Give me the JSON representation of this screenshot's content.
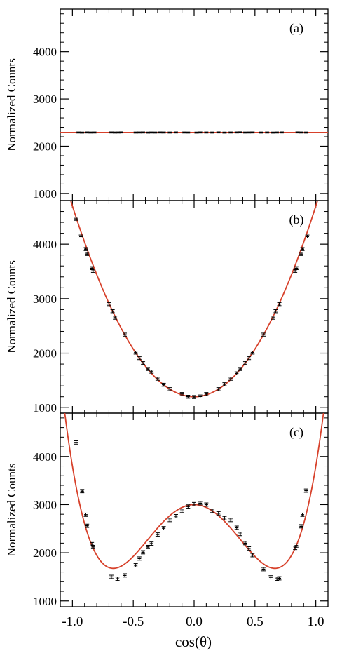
{
  "colors": {
    "fit": "#d7412b",
    "points": "#000000",
    "axis": "#000000",
    "background": "#ffffff"
  },
  "xlabel": "cos(θ)",
  "chart_data": [
    {
      "type": "scatter",
      "panel_label": "(a)",
      "ylabel": "Normalized Counts",
      "xlim": [
        -1.1,
        1.1
      ],
      "ylim": [
        850,
        4900
      ],
      "yticks": [
        1000,
        2000,
        3000,
        4000
      ],
      "xticks": [
        -1.0,
        -0.5,
        0.0,
        0.5,
        1.0
      ],
      "grid": false,
      "fit_color": "#d7412b",
      "fit_coefficients": [
        2290,
        0,
        0,
        0,
        0
      ],
      "fit_range": [
        -1.1,
        1.1
      ],
      "error": 12,
      "x": [
        -0.95,
        -0.92,
        -0.88,
        -0.85,
        -0.82,
        -0.68,
        -0.65,
        -0.62,
        -0.6,
        -0.48,
        -0.45,
        -0.42,
        -0.38,
        -0.35,
        -0.32,
        -0.28,
        -0.25,
        -0.2,
        -0.15,
        -0.08,
        -0.05,
        0.02,
        0.05,
        0.1,
        0.15,
        0.2,
        0.25,
        0.3,
        0.35,
        0.38,
        0.42,
        0.45,
        0.48,
        0.55,
        0.6,
        0.65,
        0.68,
        0.72,
        0.85,
        0.88,
        0.92
      ],
      "y": [
        2290,
        2288,
        2291,
        2289,
        2290,
        2291,
        2289,
        2290,
        2292,
        2289,
        2290,
        2291,
        2288,
        2290,
        2289,
        2291,
        2290,
        2289,
        2291,
        2290,
        2289,
        2288,
        2291,
        2290,
        2289,
        2292,
        2288,
        2290,
        2291,
        2293,
        2289,
        2290,
        2291,
        2289,
        2290,
        2288,
        2290,
        2291,
        2292,
        2290,
        2289
      ]
    },
    {
      "type": "scatter",
      "panel_label": "(b)",
      "ylabel": "Normalized Counts",
      "xlim": [
        -1.1,
        1.1
      ],
      "ylim": [
        900,
        4800
      ],
      "yticks": [
        1000,
        2000,
        3000,
        4000
      ],
      "xticks": [
        -1.0,
        -0.5,
        0.0,
        0.5,
        1.0
      ],
      "grid": false,
      "fit_color": "#d7412b",
      "fit_coefficients": [
        1200,
        0,
        3500,
        0,
        0
      ],
      "fit_range": [
        -1.1,
        1.1
      ],
      "error": 28,
      "x": [
        -0.97,
        -0.93,
        -0.89,
        -0.88,
        -0.84,
        -0.83,
        -0.7,
        -0.67,
        -0.65,
        -0.57,
        -0.48,
        -0.45,
        -0.42,
        -0.38,
        -0.35,
        -0.3,
        -0.25,
        -0.2,
        -0.1,
        -0.05,
        0.0,
        0.05,
        0.1,
        0.2,
        0.25,
        0.3,
        0.35,
        0.38,
        0.42,
        0.45,
        0.48,
        0.57,
        0.65,
        0.67,
        0.7,
        0.83,
        0.84,
        0.88,
        0.89,
        0.93
      ],
      "y": [
        4465,
        4140,
        3910,
        3820,
        3560,
        3510,
        2900,
        2770,
        2650,
        2340,
        2010,
        1910,
        1820,
        1710,
        1660,
        1530,
        1420,
        1340,
        1250,
        1200,
        1195,
        1205,
        1250,
        1340,
        1430,
        1530,
        1630,
        1710,
        1820,
        1910,
        2010,
        2340,
        2650,
        2770,
        2900,
        3510,
        3560,
        3820,
        3910,
        4140
      ]
    },
    {
      "type": "scatter",
      "panel_label": "(c)",
      "ylabel": "Normalized Counts",
      "xlim": [
        -1.1,
        1.1
      ],
      "ylim": [
        880,
        4900
      ],
      "yticks": [
        1000,
        2000,
        3000,
        4000
      ],
      "xticks": [
        -1.0,
        -0.5,
        0.0,
        0.5,
        1.0
      ],
      "xticklabels": [
        "-1.0",
        "-0.5",
        "0.0",
        "0.5",
        "1.0"
      ],
      "grid": false,
      "fit_color": "#d7412b",
      "fit_coefficients": [
        3000,
        0,
        -6000,
        0,
        6800
      ],
      "fit_range": [
        -1.1,
        1.1
      ],
      "error": 35,
      "x": [
        -0.97,
        -0.92,
        -0.89,
        -0.88,
        -0.84,
        -0.83,
        -0.68,
        -0.63,
        -0.57,
        -0.48,
        -0.45,
        -0.42,
        -0.38,
        -0.35,
        -0.3,
        -0.25,
        -0.2,
        -0.15,
        -0.1,
        -0.05,
        0.0,
        0.05,
        0.1,
        0.15,
        0.2,
        0.25,
        0.3,
        0.35,
        0.38,
        0.42,
        0.45,
        0.48,
        0.57,
        0.63,
        0.68,
        0.7,
        0.83,
        0.84,
        0.88,
        0.89,
        0.92
      ],
      "y": [
        4290,
        3280,
        2790,
        2560,
        2180,
        2120,
        1500,
        1460,
        1530,
        1740,
        1880,
        2010,
        2120,
        2190,
        2380,
        2510,
        2680,
        2760,
        2870,
        2960,
        3010,
        3030,
        3000,
        2870,
        2820,
        2720,
        2680,
        2520,
        2390,
        2200,
        2090,
        1950,
        1660,
        1490,
        1460,
        1470,
        2100,
        2150,
        2550,
        2790,
        3290
      ]
    }
  ]
}
